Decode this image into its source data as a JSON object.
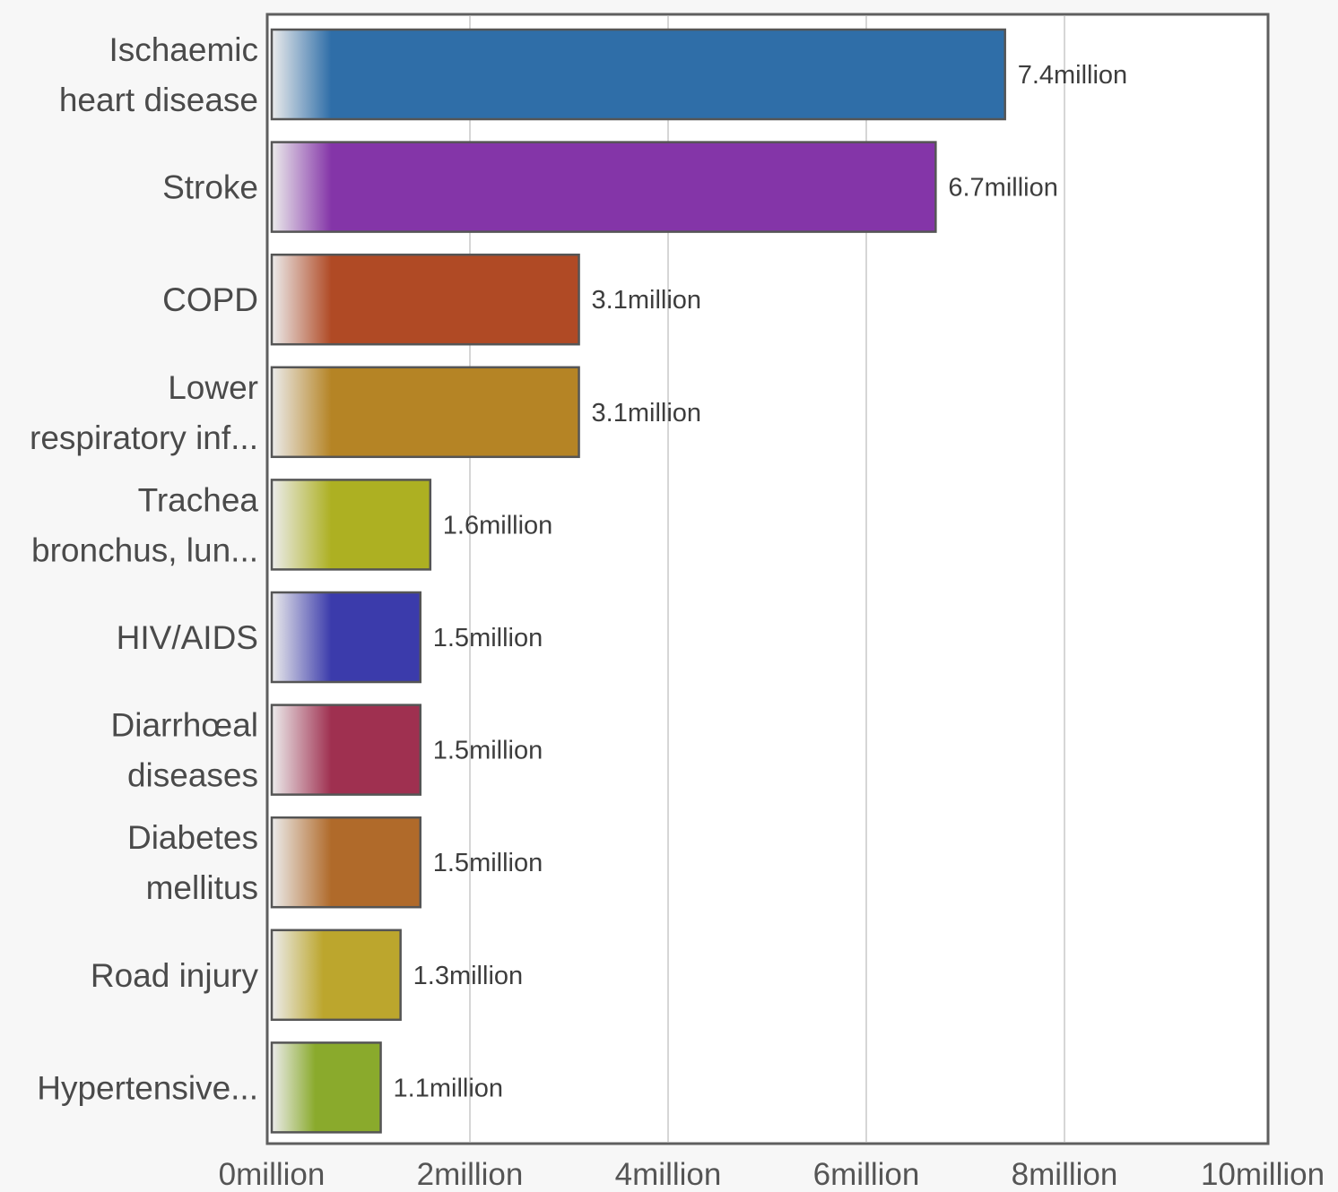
{
  "chart_data": {
    "type": "bar",
    "orientation": "horizontal",
    "title": "",
    "xlabel": "",
    "ylabel": "",
    "xlim": [
      0,
      10
    ],
    "x_unit_suffix": "million",
    "x_ticks": [
      0,
      2,
      4,
      6,
      8,
      10
    ],
    "x_tick_labels": [
      "0million",
      "2million",
      "4million",
      "6million",
      "8million",
      "10million"
    ],
    "grid": "vertical",
    "legend": "none",
    "categories": [
      {
        "lines": [
          "Ischaemic",
          "heart disease"
        ]
      },
      {
        "lines": [
          "Stroke"
        ]
      },
      {
        "lines": [
          "COPD"
        ]
      },
      {
        "lines": [
          "Lower",
          "respiratory inf..."
        ]
      },
      {
        "lines": [
          "Trachea",
          "bronchus, lun..."
        ]
      },
      {
        "lines": [
          "HIV/AIDS"
        ]
      },
      {
        "lines": [
          "Diarrhœal",
          "diseases"
        ]
      },
      {
        "lines": [
          "Diabetes",
          "mellitus"
        ]
      },
      {
        "lines": [
          "Road injury"
        ]
      },
      {
        "lines": [
          "Hypertensive..."
        ]
      }
    ],
    "values": [
      7.4,
      6.7,
      3.1,
      3.1,
      1.6,
      1.5,
      1.5,
      1.5,
      1.3,
      1.1
    ],
    "value_labels": [
      "7.4million",
      "6.7million",
      "3.1million",
      "3.1million",
      "1.6million",
      "1.5million",
      "1.5million",
      "1.5million",
      "1.3million",
      "1.1million"
    ],
    "colors": [
      "#2f6ea8",
      "#8435a8",
      "#b04a25",
      "#b58425",
      "#adb022",
      "#3b3bab",
      "#9f3050",
      "#b06a2a",
      "#bca62d",
      "#8aaa2c"
    ]
  }
}
